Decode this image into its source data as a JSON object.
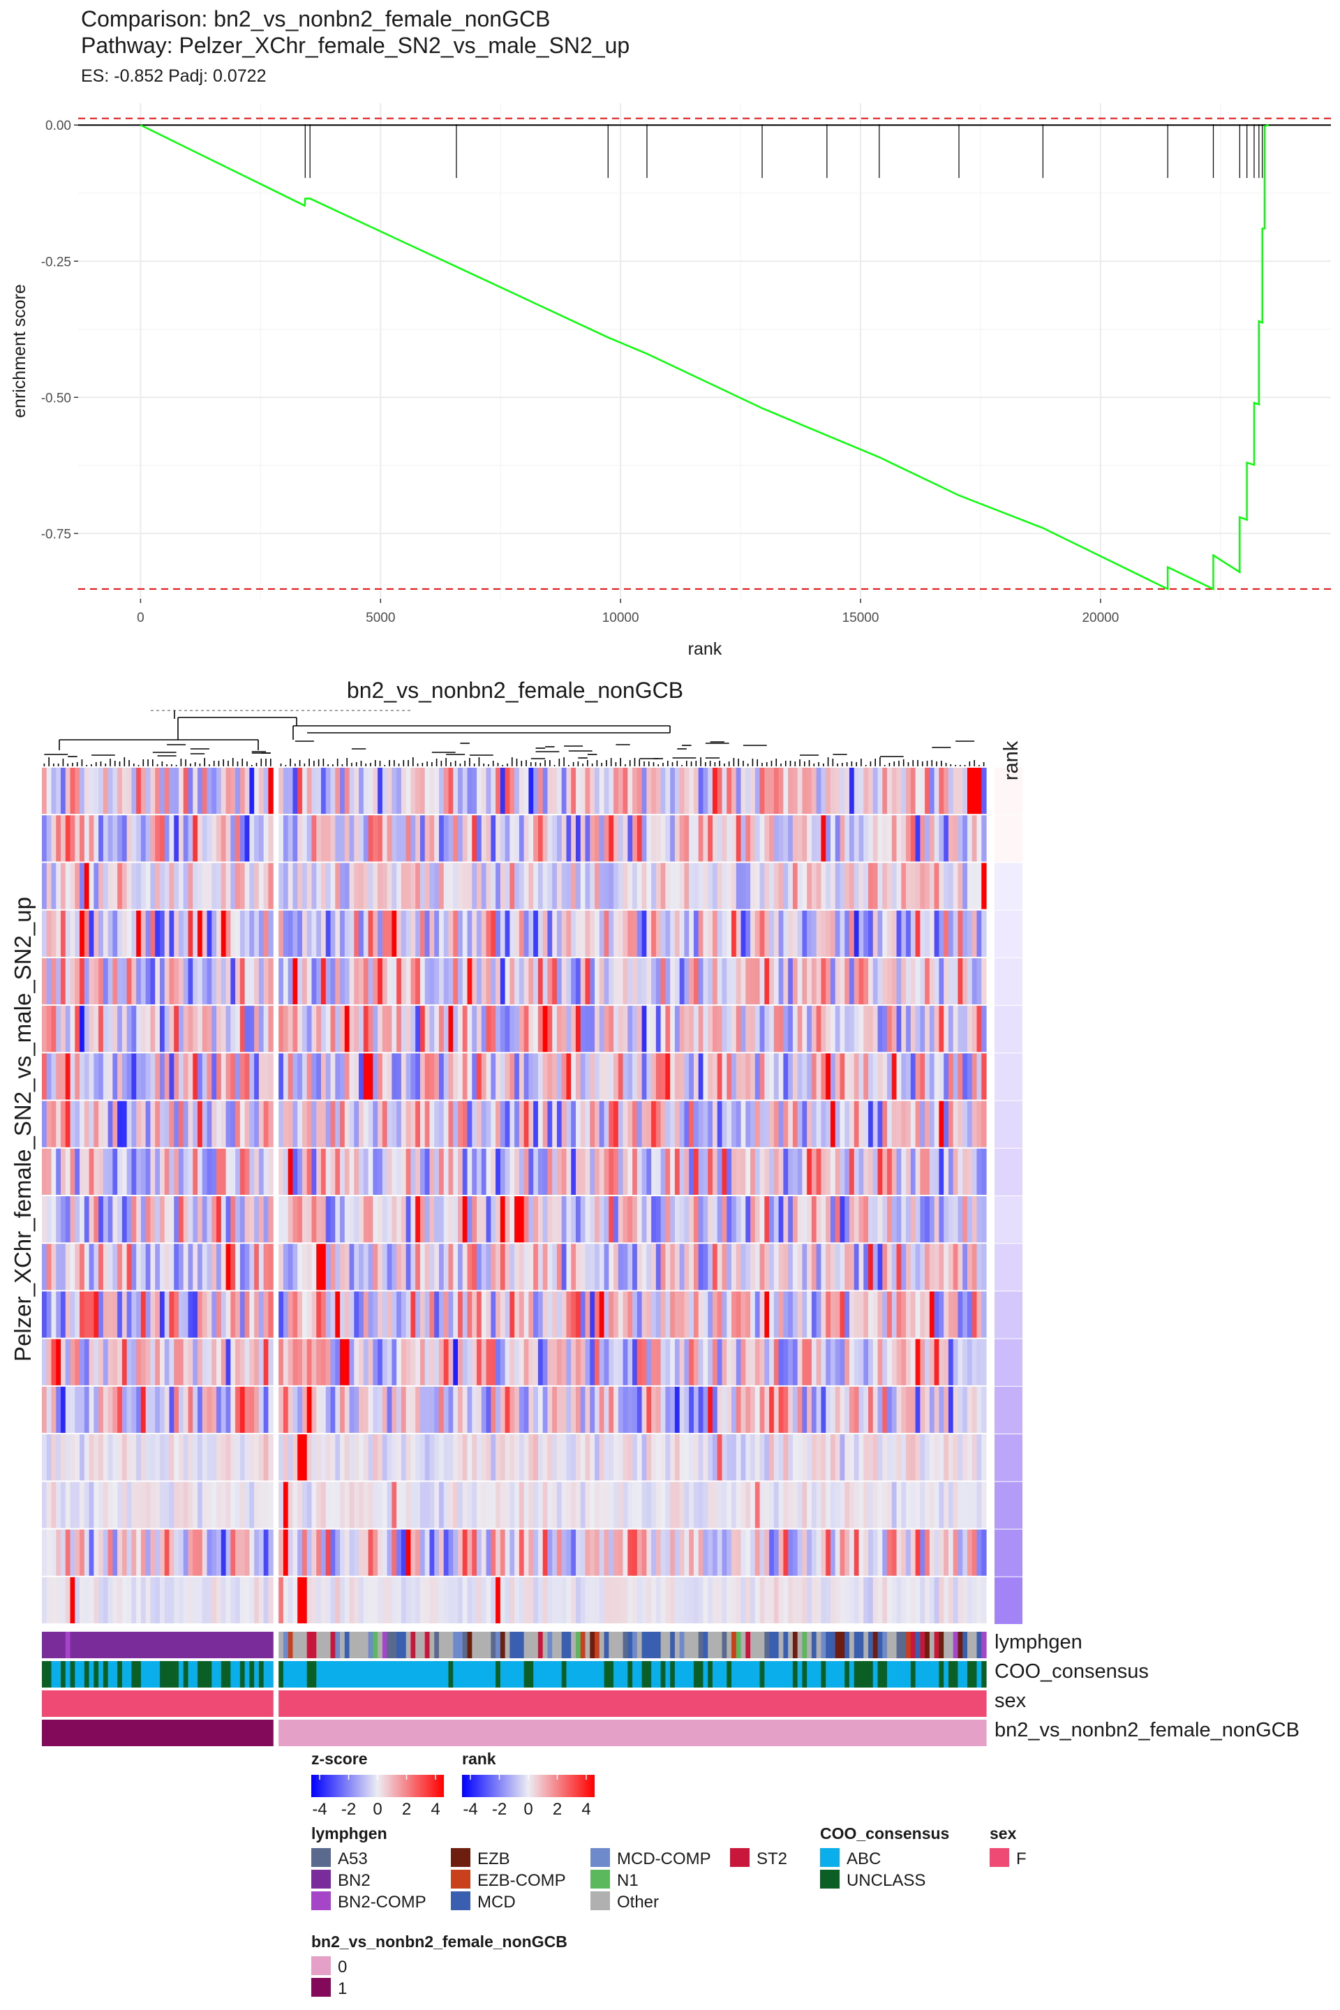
{
  "colors": {
    "es_curve": "#00ff00",
    "es_dashed": "#e31a1c",
    "zero_line": "#000000",
    "gene_ticks": "#000000",
    "heat_low": "#0000ff",
    "heat_mid": "#ececf3",
    "heat_high": "#ff0000"
  },
  "chart_data": [
    {
      "type": "line",
      "title": "Comparison: bn2_vs_nonbn2_female_nonGCB",
      "subtitle": "Pathway: Pelzer_XChr_female_SN2_vs_male_SN2_up",
      "stats": "ES: -0.852 Padj: 0.0722",
      "xlabel": "rank",
      "ylabel": "enrichment score",
      "xlim": [
        -1300,
        24800
      ],
      "ylim": [
        -0.87,
        0.04
      ],
      "x_ticks": [
        0,
        5000,
        10000,
        15000,
        20000
      ],
      "x_tick_labels": [
        "0",
        "5000",
        "10000",
        "15000",
        "20000"
      ],
      "y_ticks": [
        0.0,
        -0.25,
        -0.5,
        -0.75
      ],
      "y_tick_labels": [
        "0.00",
        "-0.25",
        "-0.50",
        "-0.75"
      ],
      "grid": true,
      "dashed_lines": [
        0.0122,
        -0.852
      ],
      "gene_ranks": [
        3430,
        3530,
        6580,
        9740,
        10550,
        12950,
        14300,
        15390,
        17050,
        18800,
        21400,
        22350,
        22900,
        23050,
        23200,
        23300,
        23370,
        23420
      ],
      "series": [
        {
          "x": [
            0,
            3420,
            3430,
            3530,
            6580,
            9740,
            10550,
            12950,
            14300,
            15390,
            17050,
            18800,
            21400,
            21400,
            22350,
            22350,
            22900,
            22900,
            23050,
            23050,
            23200,
            23200,
            23300,
            23300,
            23370,
            23370,
            23420,
            23420,
            23500
          ],
          "y": [
            0,
            -0.148,
            -0.135,
            -0.135,
            -0.26,
            -0.39,
            -0.42,
            -0.52,
            -0.57,
            -0.61,
            -0.68,
            -0.74,
            -0.852,
            -0.812,
            -0.852,
            -0.79,
            -0.821,
            -0.72,
            -0.725,
            -0.62,
            -0.624,
            -0.51,
            -0.513,
            -0.36,
            -0.363,
            -0.19,
            -0.19,
            -0.002,
            0.0
          ]
        }
      ]
    },
    {
      "type": "heatmap",
      "title": "bn2_vs_nonbn2_female_nonGCB",
      "row_label": "Pelzer_XChr_female_SN2_vs_male_SN2_up",
      "column_groups": [
        {
          "group": "1",
          "columns": 49
        },
        {
          "group": "0",
          "columns": 150
        }
      ],
      "rows": 18,
      "rank_column_label": "rank",
      "annotation_rows": [
        "lymphgen",
        "COO_consensus",
        "sex",
        "bn2_vs_nonbn2_female_nonGCB"
      ],
      "hot_cells": [
        {
          "row": 0,
          "col": 48
        },
        {
          "row": 0,
          "col": 196
        },
        {
          "row": 0,
          "col": 197
        },
        {
          "row": 0,
          "col": 195
        },
        {
          "row": 2,
          "col": 9
        },
        {
          "row": 2,
          "col": 198
        },
        {
          "row": 3,
          "col": 8
        },
        {
          "row": 3,
          "col": 33
        },
        {
          "row": 4,
          "col": 52
        },
        {
          "row": 5,
          "col": 63
        },
        {
          "row": 5,
          "col": 105
        },
        {
          "row": 6,
          "col": 67
        },
        {
          "row": 6,
          "col": 68
        },
        {
          "row": 7,
          "col": 166
        },
        {
          "row": 7,
          "col": 189
        },
        {
          "row": 8,
          "col": 51
        },
        {
          "row": 9,
          "col": 99
        },
        {
          "row": 9,
          "col": 100
        },
        {
          "row": 10,
          "col": 57
        },
        {
          "row": 10,
          "col": 58
        },
        {
          "row": 11,
          "col": 61
        },
        {
          "row": 12,
          "col": 62
        },
        {
          "row": 12,
          "col": 63
        },
        {
          "row": 13,
          "col": 55
        },
        {
          "row": 14,
          "col": 53
        },
        {
          "row": 14,
          "col": 54
        },
        {
          "row": 15,
          "col": 50
        },
        {
          "row": 16,
          "col": 50
        },
        {
          "row": 16,
          "col": 76
        },
        {
          "row": 17,
          "col": 6
        },
        {
          "row": 17,
          "col": 53
        },
        {
          "row": 17,
          "col": 54
        },
        {
          "row": 17,
          "col": 95
        }
      ]
    }
  ],
  "legend": {
    "zscore": {
      "title": "z-score",
      "ticks": [
        "-4",
        "-2",
        "0",
        "2",
        "4"
      ]
    },
    "rank": {
      "title": "rank",
      "ticks": [
        "-4",
        "-2",
        "0",
        "2",
        "4"
      ]
    },
    "lymphgen": {
      "title": "lymphgen",
      "items": [
        {
          "label": "A53",
          "color": "#5a6a8e"
        },
        {
          "label": "BN2",
          "color": "#7a2c9a"
        },
        {
          "label": "BN2-COMP",
          "color": "#a545c8"
        },
        {
          "label": "EZB",
          "color": "#6e1e0f"
        },
        {
          "label": "EZB-COMP",
          "color": "#c8401c"
        },
        {
          "label": "MCD",
          "color": "#3a5fb0"
        },
        {
          "label": "MCD-COMP",
          "color": "#6e8acb"
        },
        {
          "label": "N1",
          "color": "#5cb85c"
        },
        {
          "label": "Other",
          "color": "#b0b0b0"
        },
        {
          "label": "ST2",
          "color": "#c8173a"
        }
      ]
    },
    "coo": {
      "title": "COO_consensus",
      "items": [
        {
          "label": "ABC",
          "color": "#0aaeea"
        },
        {
          "label": "UNCLASS",
          "color": "#0b5e24"
        }
      ]
    },
    "sex": {
      "title": "sex",
      "items": [
        {
          "label": "F",
          "color": "#ee4a74"
        }
      ]
    },
    "group": {
      "title": "bn2_vs_nonbn2_female_nonGCB",
      "items": [
        {
          "label": "0",
          "color": "#e5a0c8"
        },
        {
          "label": "1",
          "color": "#830a5a"
        }
      ]
    }
  }
}
